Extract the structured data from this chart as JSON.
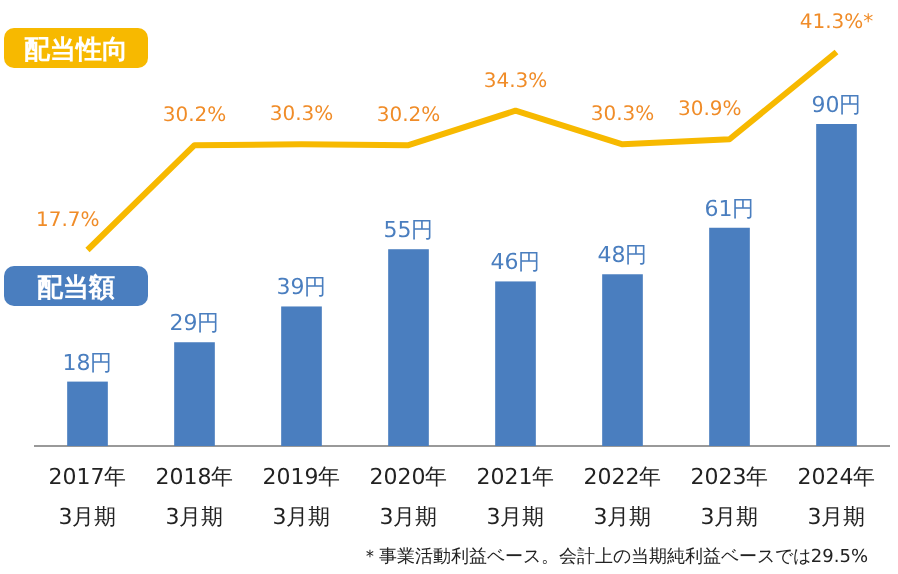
{
  "chart_data": {
    "type": "bar",
    "categories": [
      "2017年\n3月期",
      "2018年\n3月期",
      "2019年\n3月期",
      "2020年\n3月期",
      "2021年\n3月期",
      "2022年\n3月期",
      "2023年\n3月期",
      "2024年\n3月期"
    ],
    "series": [
      {
        "name": "配当額",
        "color": "#4a7ebf",
        "values": [
          18,
          29,
          39,
          55,
          46,
          48,
          61,
          90
        ],
        "value_labels": [
          "18円",
          "29円",
          "39円",
          "55円",
          "46円",
          "48円",
          "61円",
          "90円"
        ]
      },
      {
        "name": "配当性向",
        "type": "line",
        "axis": "y2",
        "color": "#f7b900",
        "values": [
          17.7,
          30.2,
          30.3,
          30.2,
          34.3,
          30.3,
          30.9,
          41.3
        ],
        "value_labels": [
          "17.7%",
          "30.2%",
          "30.3%",
          "30.2%",
          "34.3%",
          "30.3%",
          "30.9%",
          "41.3%*"
        ]
      }
    ],
    "legend": "left",
    "marker": "none",
    "annotations": [
      "＊事業活動利益ベース。会計上の当期純利益ベースでは29.5%"
    ]
  }
}
